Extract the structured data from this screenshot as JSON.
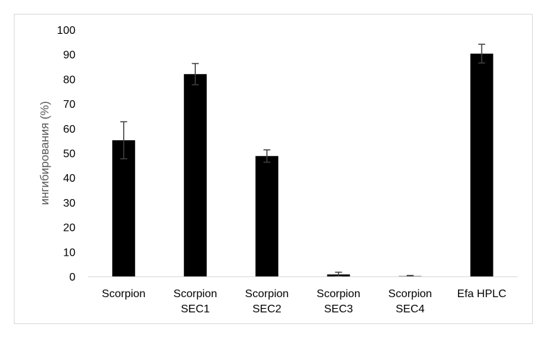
{
  "chart_data": {
    "type": "bar",
    "categories": [
      [
        "Scorpion"
      ],
      [
        "Scorpion",
        "SEC1"
      ],
      [
        "Scorpion",
        "SEC2"
      ],
      [
        "Scorpion",
        "SEC3"
      ],
      [
        "Scorpion",
        "SEC4"
      ],
      [
        "Efa HPLC"
      ]
    ],
    "values": [
      55.2,
      82.0,
      48.8,
      0.8,
      0.1,
      90.3
    ],
    "error": [
      7.5,
      4.3,
      2.5,
      0.9,
      0.3,
      3.8
    ],
    "ylabel": "ингибирования (%)",
    "ylim": [
      0,
      100
    ],
    "yticks": [
      0,
      10,
      20,
      30,
      40,
      50,
      60,
      70,
      80,
      90,
      100
    ],
    "bar_color": "#000000",
    "error_color": "#404040",
    "grid": false,
    "legend": "none"
  }
}
